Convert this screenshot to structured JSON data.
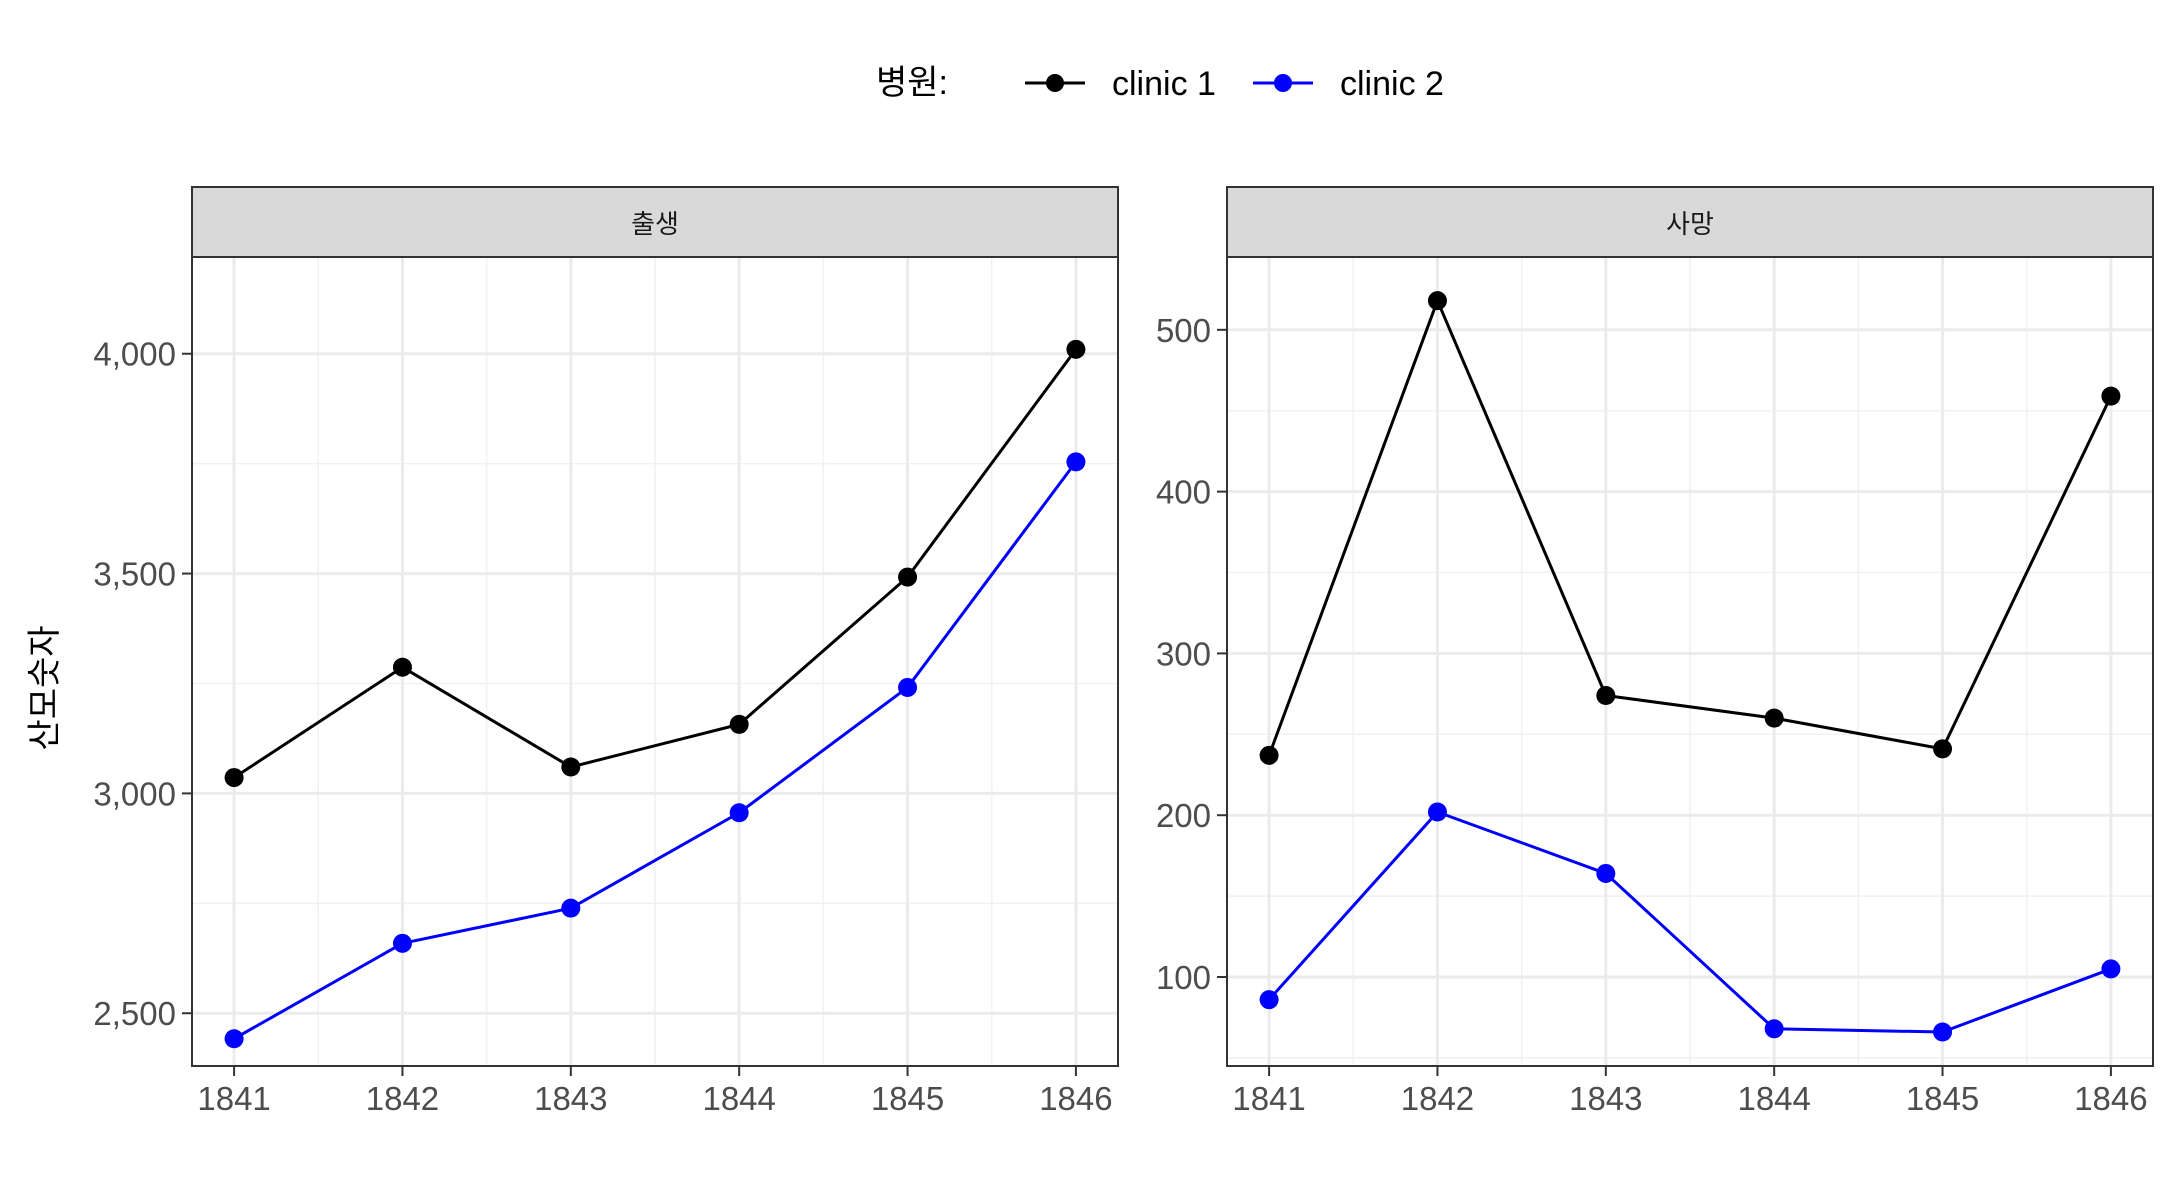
{
  "chart_data": {
    "type": "line",
    "ylabel": "산모숫자",
    "legend": {
      "title": "병원:",
      "position": "top",
      "items": [
        {
          "name": "clinic 1",
          "color": "#000000"
        },
        {
          "name": "clinic 2",
          "color": "#0000ff"
        }
      ]
    },
    "grid": true,
    "panels": [
      {
        "strip": "출생",
        "x": [
          1841,
          1842,
          1843,
          1844,
          1845,
          1846
        ],
        "xticks": [
          "1841",
          "1842",
          "1843",
          "1844",
          "1845",
          "1846"
        ],
        "ylim": [
          2380,
          4220
        ],
        "yticks": [
          2500,
          3000,
          3500,
          4000
        ],
        "yticklabels": [
          "2,500",
          "3,000",
          "3,500",
          "4,000"
        ],
        "series": [
          {
            "name": "clinic 1",
            "color": "#000000",
            "values": [
              3036,
              3287,
              3060,
              3157,
              3492,
              4010
            ]
          },
          {
            "name": "clinic 2",
            "color": "#0000ff",
            "values": [
              2442,
              2659,
              2739,
              2956,
              3241,
              3754
            ]
          }
        ]
      },
      {
        "strip": "사망",
        "x": [
          1841,
          1842,
          1843,
          1844,
          1845,
          1846
        ],
        "xticks": [
          "1841",
          "1842",
          "1843",
          "1844",
          "1845",
          "1846"
        ],
        "ylim": [
          45,
          545
        ],
        "yticks": [
          100,
          200,
          300,
          400,
          500
        ],
        "yticklabels": [
          "100",
          "200",
          "300",
          "400",
          "500"
        ],
        "series": [
          {
            "name": "clinic 1",
            "color": "#000000",
            "values": [
              237,
              518,
              274,
              260,
              241,
              459
            ]
          },
          {
            "name": "clinic 2",
            "color": "#0000ff",
            "values": [
              86,
              202,
              164,
              68,
              66,
              105
            ]
          }
        ]
      }
    ]
  }
}
